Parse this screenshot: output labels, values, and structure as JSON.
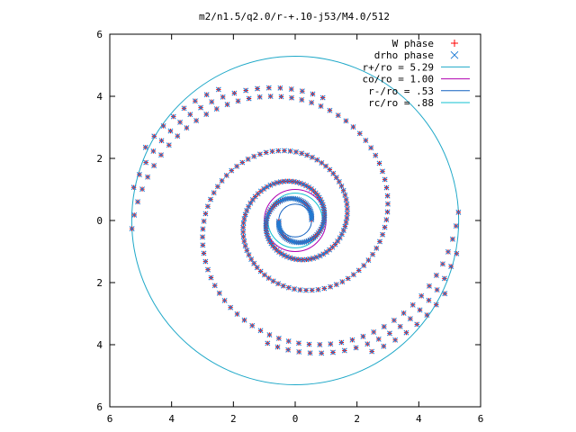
{
  "chart_data": {
    "type": "scatter",
    "title": "m2/n1.5/q2.0/r-+.10-j53/M4.0/512",
    "xlabel": "",
    "ylabel": "",
    "xlim": [
      -6,
      6
    ],
    "ylim": [
      -6,
      6
    ],
    "x_tick_labels": [
      "6",
      "4",
      "2",
      "0",
      "2",
      "4",
      "6"
    ],
    "y_tick_labels": [
      "6",
      "4",
      "2",
      "0",
      "2",
      "4",
      "6"
    ],
    "grid": false,
    "legend_placement": "top-right",
    "series": [
      {
        "name": "W phase",
        "kind": "points",
        "marker": "+",
        "color": "#ff0000",
        "description": "two-armed trailing spiral of points from r=0.53 to r=5.29 (m=2 mode)",
        "m": 2,
        "r_range": [
          0.53,
          5.29
        ],
        "turns": 2
      },
      {
        "name": "drho phase",
        "kind": "points",
        "marker": "x",
        "color": "#1e7bd4",
        "description": "same two-armed spiral as W phase, overplotted",
        "m": 2,
        "r_range": [
          0.53,
          5.29
        ],
        "turns": 2
      },
      {
        "name": "r+/ro = 5.29",
        "kind": "circle",
        "radius": 5.29,
        "color": "#1ea8c8"
      },
      {
        "name": "co/ro = 1.00",
        "kind": "circle",
        "radius": 1.0,
        "color": "#b000b0"
      },
      {
        "name": "r-/ro = .53",
        "kind": "circle",
        "radius": 0.53,
        "color": "#1060c0"
      },
      {
        "name": "rc/ro = .88",
        "kind": "circle",
        "radius": 0.88,
        "color": "#10c0d0"
      }
    ]
  }
}
